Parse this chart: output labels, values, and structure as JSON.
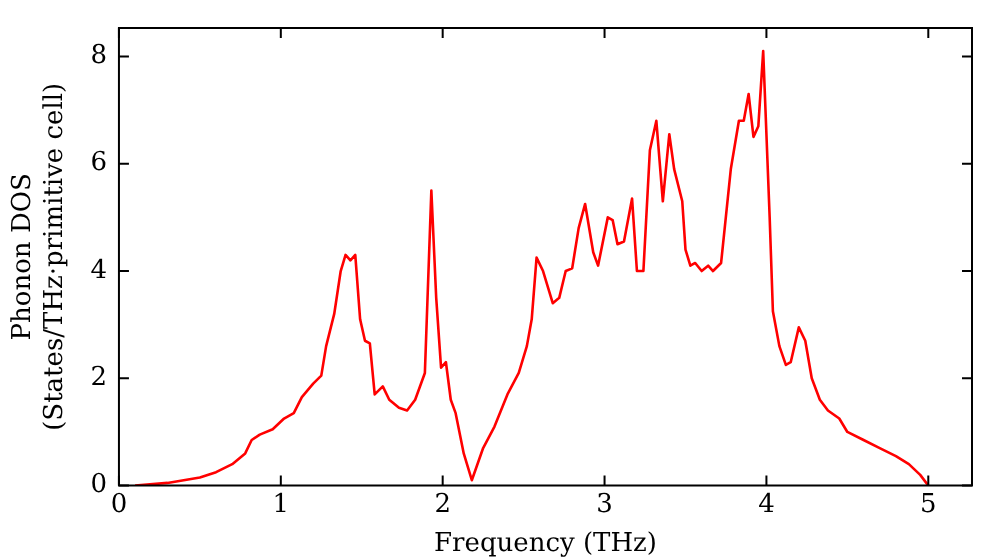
{
  "chart_data": {
    "type": "line",
    "xlabel": "Frequency (THz)",
    "ylabel": "Phonon DOS\n(States/THz·primitive cell)",
    "xlim": [
      0,
      5.27
    ],
    "ylim": [
      0,
      8.53
    ],
    "xticks": [
      0,
      1,
      2,
      3,
      4,
      5
    ],
    "yticks": [
      0,
      2,
      4,
      6,
      8
    ],
    "grid": false,
    "legend": false,
    "marker": "none",
    "line_style": "solid",
    "series": [
      {
        "color": "#ff0000",
        "x": [
          0.1,
          0.3,
          0.5,
          0.6,
          0.7,
          0.78,
          0.82,
          0.87,
          0.95,
          1.02,
          1.08,
          1.13,
          1.2,
          1.25,
          1.28,
          1.33,
          1.37,
          1.4,
          1.43,
          1.46,
          1.49,
          1.52,
          1.55,
          1.58,
          1.63,
          1.67,
          1.73,
          1.78,
          1.83,
          1.89,
          1.93,
          1.96,
          1.99,
          2.02,
          2.05,
          2.08,
          2.13,
          2.18,
          2.25,
          2.32,
          2.4,
          2.47,
          2.52,
          2.55,
          2.58,
          2.62,
          2.68,
          2.72,
          2.76,
          2.8,
          2.84,
          2.88,
          2.93,
          2.96,
          3.02,
          3.05,
          3.08,
          3.12,
          3.17,
          3.2,
          3.24,
          3.28,
          3.32,
          3.36,
          3.4,
          3.43,
          3.48,
          3.5,
          3.53,
          3.56,
          3.6,
          3.64,
          3.67,
          3.72,
          3.78,
          3.83,
          3.86,
          3.89,
          3.92,
          3.95,
          3.98,
          4.02,
          4.04,
          4.08,
          4.12,
          4.15,
          4.2,
          4.24,
          4.28,
          4.33,
          4.38,
          4.45,
          4.5,
          4.6,
          4.7,
          4.8,
          4.88,
          4.95,
          5.0
        ],
        "values": [
          0,
          0.05,
          0.15,
          0.25,
          0.4,
          0.6,
          0.85,
          0.95,
          1.05,
          1.25,
          1.35,
          1.65,
          1.9,
          2.05,
          2.6,
          3.2,
          4.0,
          4.3,
          4.2,
          4.3,
          3.1,
          2.7,
          2.65,
          1.7,
          1.85,
          1.6,
          1.45,
          1.4,
          1.6,
          2.1,
          5.5,
          3.5,
          2.2,
          2.3,
          1.6,
          1.35,
          0.6,
          0.1,
          0.7,
          1.1,
          1.7,
          2.1,
          2.6,
          3.1,
          4.25,
          4.0,
          3.4,
          3.5,
          4.0,
          4.05,
          4.8,
          5.25,
          4.35,
          4.1,
          5.0,
          4.95,
          4.5,
          4.55,
          5.35,
          4.0,
          4.0,
          6.25,
          6.8,
          5.3,
          6.55,
          5.9,
          5.3,
          4.4,
          4.1,
          4.15,
          4.0,
          4.1,
          4.0,
          4.15,
          5.9,
          6.8,
          6.8,
          7.3,
          6.5,
          6.7,
          8.1,
          5.0,
          3.25,
          2.6,
          2.25,
          2.3,
          2.95,
          2.7,
          2.0,
          1.6,
          1.4,
          1.25,
          1.0,
          0.85,
          0.7,
          0.55,
          0.4,
          0.2,
          0.0
        ]
      }
    ]
  }
}
